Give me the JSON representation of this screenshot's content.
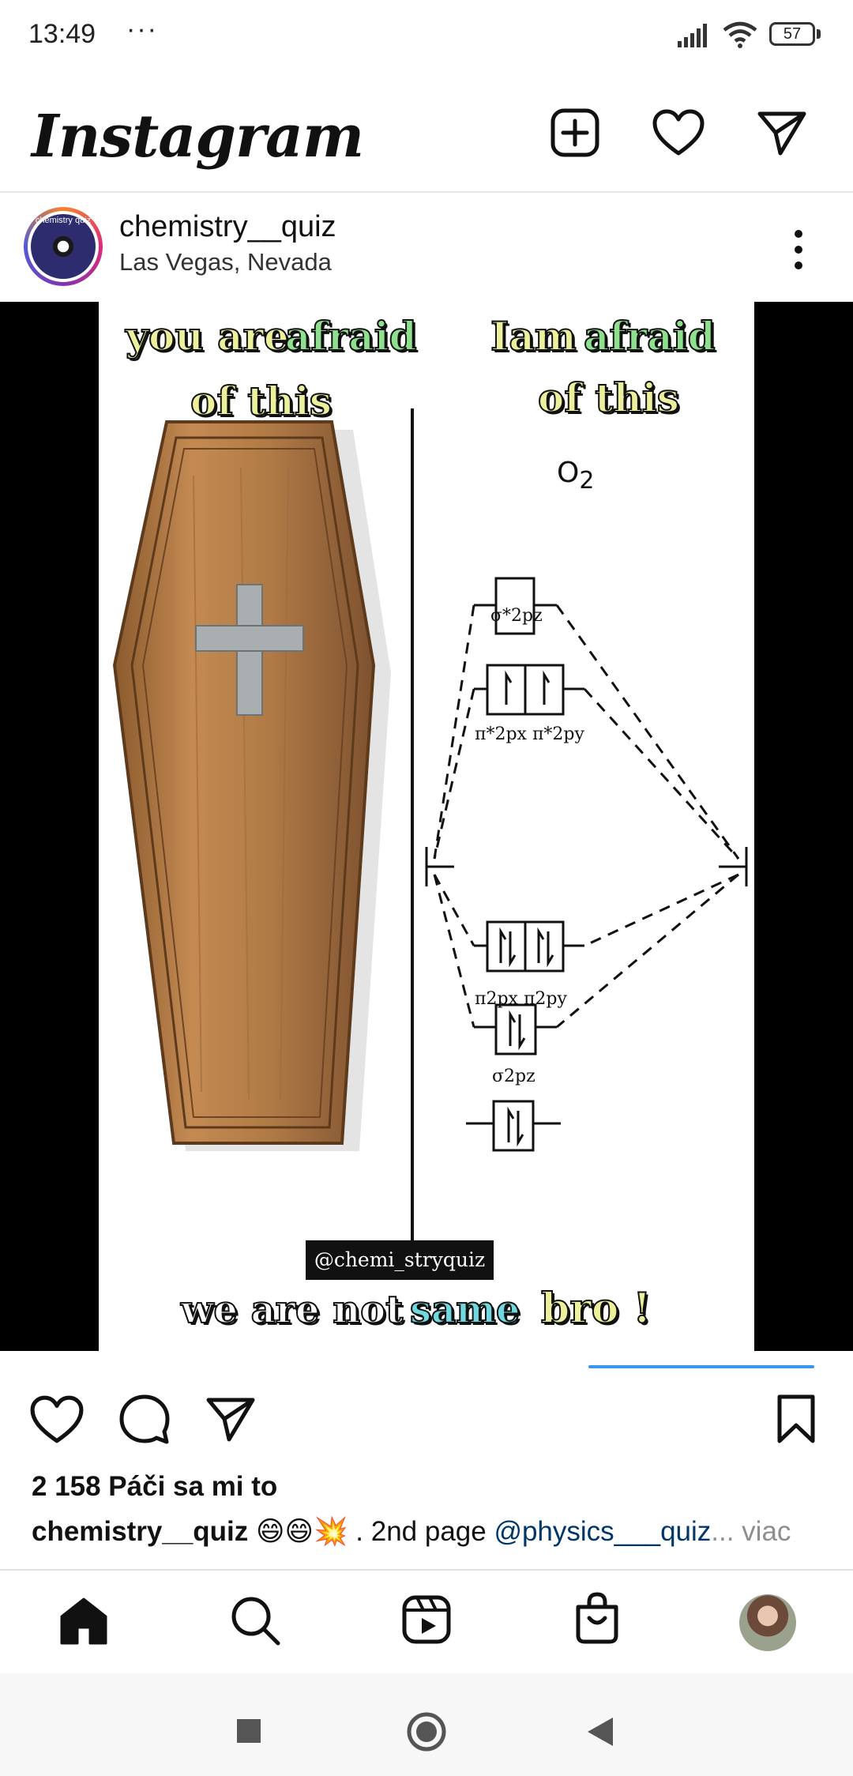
{
  "status_bar": {
    "time": "13:49",
    "dots": "···",
    "battery": "57"
  },
  "header": {
    "logo_text": "Instagram",
    "icons": [
      "new-post-icon",
      "heart-icon",
      "direct-message-icon"
    ]
  },
  "post": {
    "username": "chemistry__quiz",
    "location": "Las Vegas, Nevada",
    "avatar_text": "chemistry quiz",
    "meme": {
      "left_top_1": "you are",
      "left_top_2": "afraid",
      "left_top_3": "of this",
      "right_top_1": "Iam",
      "right_top_2": "afraid",
      "right_top_3": "of this",
      "o2_label": "O",
      "o2_sub": "2",
      "credit": "@chemi_stryquiz",
      "bottom_1": "we are not",
      "bottom_2": "same",
      "bottom_3": "bro !",
      "mo_labels": [
        "σ*2pz",
        "π*2px π*2py",
        "π2px π2py",
        "σ2pz"
      ]
    },
    "likes": "2 158 Páči sa mi to",
    "caption_user": "chemistry__quiz",
    "caption_text": " 😄😄💥 . 2nd page ",
    "caption_mention": "@physics___quiz",
    "caption_more": "... viac"
  },
  "colors": {
    "accent_blue": "#3897f0",
    "mention": "#00376b",
    "muted": "#8e8e8e"
  }
}
